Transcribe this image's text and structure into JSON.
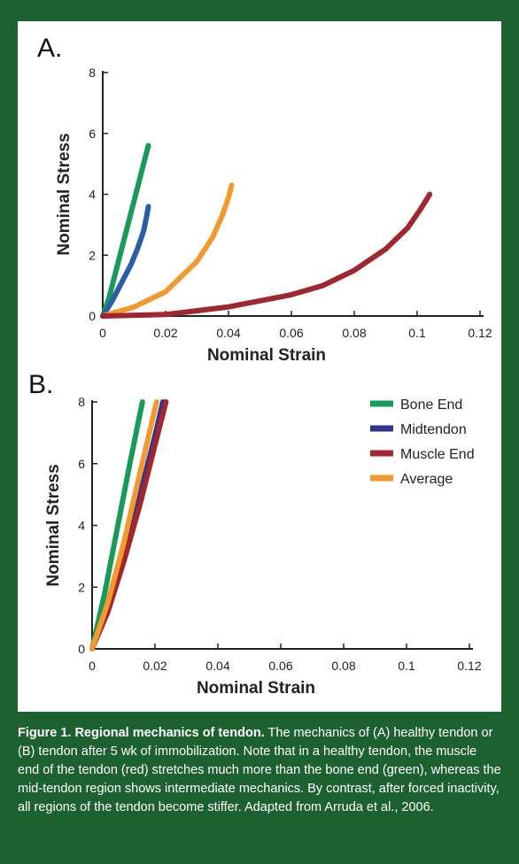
{
  "chart_data": [
    {
      "panel": "A.",
      "type": "line",
      "xlabel": "Nominal Strain",
      "ylabel": "Nominal Stress",
      "xlim": [
        0,
        0.12
      ],
      "ylim": [
        0,
        8
      ],
      "xticks": [
        "0",
        "0.02",
        "0.04",
        "0.06",
        "0.08",
        "0.1",
        "0.12"
      ],
      "yticks": [
        "0",
        "2",
        "4",
        "6",
        "8"
      ],
      "grid": false,
      "series": [
        {
          "name": "Bone End",
          "color": "#1a9a5a",
          "x": [
            0,
            0.002,
            0.004,
            0.006,
            0.008,
            0.01,
            0.012,
            0.0135,
            0.0145
          ],
          "y": [
            0,
            0.6,
            1.4,
            2.2,
            3.0,
            3.8,
            4.6,
            5.2,
            5.6
          ]
        },
        {
          "name": "Midtendon",
          "color": "#2a5ea8",
          "x": [
            0,
            0.003,
            0.006,
            0.009,
            0.011,
            0.013,
            0.014,
            0.0145
          ],
          "y": [
            0,
            0.5,
            1.1,
            1.7,
            2.2,
            2.8,
            3.3,
            3.6
          ]
        },
        {
          "name": "Average",
          "color": "#f39a2e",
          "x": [
            0,
            0.01,
            0.02,
            0.03,
            0.035,
            0.038,
            0.04,
            0.041
          ],
          "y": [
            0,
            0.3,
            0.8,
            1.8,
            2.6,
            3.3,
            3.9,
            4.3
          ]
        },
        {
          "name": "Muscle End",
          "color": "#a0262f",
          "x": [
            0,
            0.02,
            0.04,
            0.06,
            0.07,
            0.08,
            0.09,
            0.097,
            0.101,
            0.104
          ],
          "y": [
            0,
            0.05,
            0.3,
            0.7,
            1.0,
            1.5,
            2.2,
            2.9,
            3.5,
            4.0
          ]
        }
      ]
    },
    {
      "panel": "B.",
      "type": "line",
      "xlabel": "Nominal Strain",
      "ylabel": "Nominal Stress",
      "xlim": [
        0,
        0.12
      ],
      "ylim": [
        0,
        8
      ],
      "xticks": [
        "0",
        "0.02",
        "0.04",
        "0.06",
        "0.08",
        "0.1",
        "0.12"
      ],
      "yticks": [
        "0",
        "2",
        "4",
        "6",
        "8"
      ],
      "grid": false,
      "legend": "top-right",
      "series": [
        {
          "name": "Bone End",
          "color": "#1a9a5a",
          "x": [
            0,
            0.004,
            0.008,
            0.012,
            0.016
          ],
          "y": [
            0,
            1.8,
            3.9,
            6.0,
            8.0
          ]
        },
        {
          "name": "Midtendon",
          "color": "#2c3590",
          "x": [
            0,
            0.005,
            0.01,
            0.015,
            0.02,
            0.0225
          ],
          "y": [
            0,
            1.4,
            3.1,
            4.9,
            6.9,
            8.0
          ]
        },
        {
          "name": "Muscle End",
          "color": "#a0262f",
          "x": [
            0,
            0.005,
            0.01,
            0.015,
            0.02,
            0.0235
          ],
          "y": [
            0,
            1.2,
            2.8,
            4.6,
            6.6,
            8.0
          ]
        },
        {
          "name": "Average",
          "color": "#f39a2e",
          "x": [
            0,
            0.005,
            0.01,
            0.015,
            0.0205
          ],
          "y": [
            0,
            1.5,
            3.4,
            5.6,
            8.0
          ]
        }
      ]
    }
  ],
  "caption": {
    "heading": "Figure 1. Regional mechanics of tendon.",
    "body": " The mechanics of (A) healthy tendon or (B) tendon after 5 wk of immobilization. Note that in a healthy tendon, the muscle end of the tendon (red) stretches much more than the bone end (green), whereas the mid-tendon region shows intermediate mechanics. By contrast, after forced inactivity, all regions of the tendon become stiffer. Adapted from Arruda et al., 2006."
  }
}
